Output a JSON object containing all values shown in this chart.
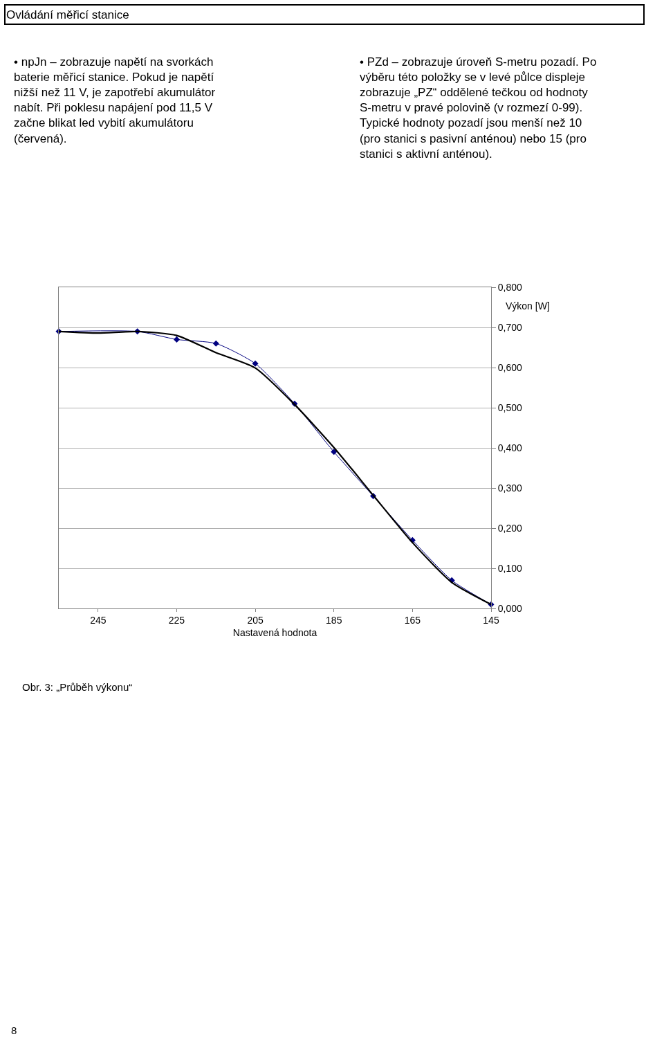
{
  "chart_data": {
    "type": "line",
    "title": "Ovládání měřicí stanice",
    "xlabel": "Nastavená hodnota",
    "ylabel": "Výkon [W]",
    "annotations": [
      "• npJn – zobrazuje napětí na svorkách baterie měřicí stanice. Pokud je napětí nižší než 11 V, je zapotřebí akumulátor nabít. Při poklesu napájení pod 11,5 V začne blikat led vybití akumulátoru (červená).",
      "• PZd – zobrazuje úroveň S-metru pozadí. Po výběru této položky se v levé půlce displeje zobrazuje „PZ“ oddělené tečkou od hodnoty S-metru v pravé polovině (v rozmezí 0-99). Typické hodnoty pozadí jsou menší než 10 (pro stanici s pasivní anténou) nebo 15 (pro stanici s aktivní anténou).",
      "Obr. 3: „Průběh výkonu“",
      "8"
    ],
    "x": [
      255,
      235,
      225,
      215,
      205,
      195,
      185,
      175,
      165,
      155,
      145
    ],
    "series": [
      {
        "color": "#000080",
        "marker": "diamond",
        "values": [
          0.69,
          0.69,
          0.67,
          0.66,
          0.61,
          0.51,
          0.39,
          0.28,
          0.17,
          0.07,
          0.01
        ]
      },
      {
        "type": "line",
        "color": "#000000",
        "marker": "none",
        "x": [
          255,
          245,
          235,
          225,
          215,
          205,
          195,
          185,
          175,
          165,
          155,
          145
        ],
        "values": [
          0.69,
          0.686,
          0.69,
          0.68,
          0.637,
          0.599,
          0.508,
          0.401,
          0.282,
          0.164,
          0.065,
          0.01
        ]
      }
    ],
    "xlim": [
      255,
      145
    ],
    "xticks": [
      245,
      225,
      205,
      185,
      165,
      145
    ],
    "ylim": [
      0,
      0.8
    ],
    "yticks": [
      {
        "value": 0,
        "label": "0,000"
      },
      {
        "value": 0.1,
        "label": "0,100"
      },
      {
        "value": 0.2,
        "label": "0,200"
      },
      {
        "value": 0.3,
        "label": "0,300"
      },
      {
        "value": 0.4,
        "label": "0,400"
      },
      {
        "value": 0.5,
        "label": "0,500"
      },
      {
        "value": 0.6,
        "label": "0,600"
      },
      {
        "value": 0.7,
        "label": "0,700"
      },
      {
        "value": 0.8,
        "label": "0,800"
      }
    ],
    "grid": "y"
  }
}
